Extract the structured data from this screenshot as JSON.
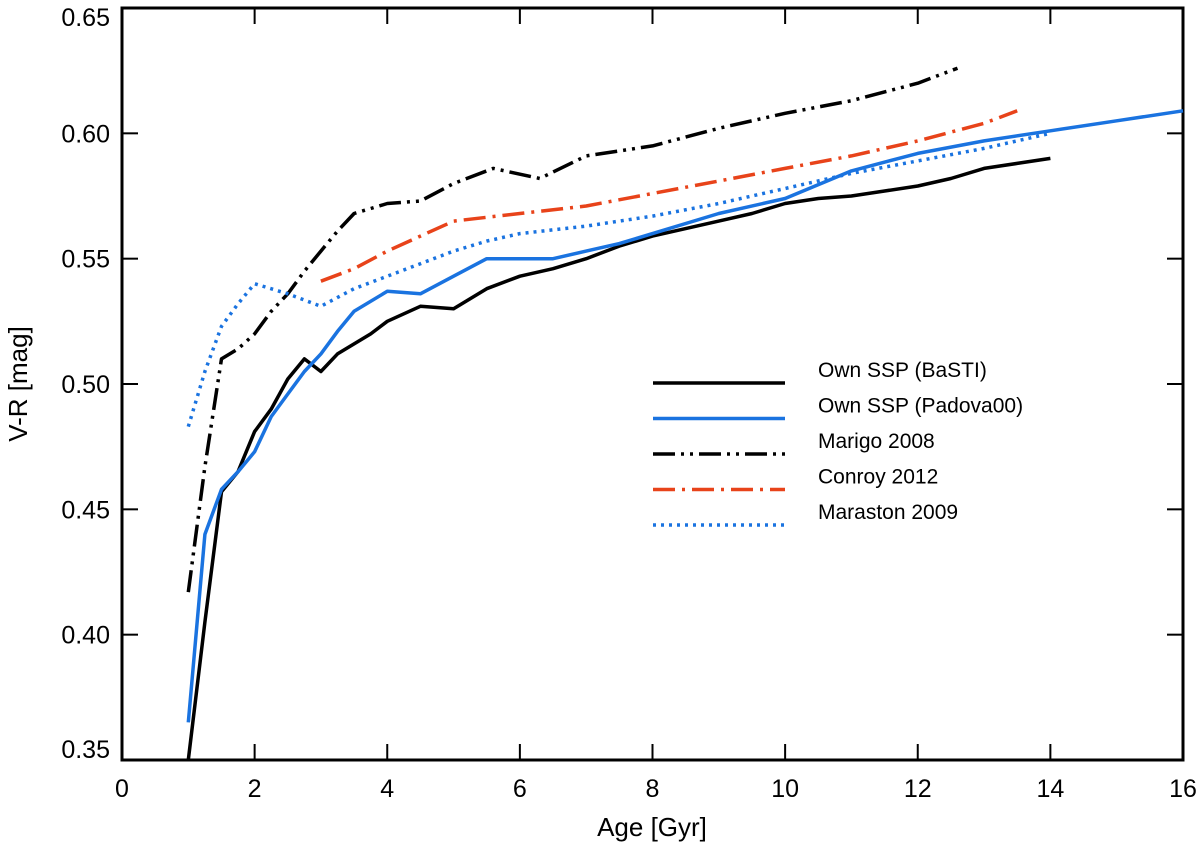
{
  "chart_data": {
    "type": "line",
    "title": "",
    "xlabel": "Age [Gyr]",
    "ylabel": "V-R [mag]",
    "xlim": [
      0,
      16
    ],
    "ylim": [
      0.35,
      0.65
    ],
    "x_ticks": [
      "0",
      "2",
      "4",
      "6",
      "8",
      "10",
      "12",
      "14",
      "16"
    ],
    "y_ticks": [
      "0.35",
      "0.40",
      "0.45",
      "0.50",
      "0.55",
      "0.60",
      "0.65"
    ],
    "grid": false,
    "legend_position": "center-right",
    "series": [
      {
        "name": "Own SSP (BaSTI)",
        "color": "#000000",
        "style": "solid",
        "x": [
          1.0,
          1.25,
          1.5,
          1.75,
          2.0,
          2.25,
          2.5,
          2.75,
          3.0,
          3.25,
          3.5,
          3.75,
          4.0,
          4.5,
          5.0,
          5.5,
          6.0,
          6.5,
          7.0,
          7.5,
          8.0,
          8.5,
          9.0,
          9.5,
          10.0,
          10.5,
          11.0,
          11.5,
          12.0,
          12.5,
          13.0,
          13.5,
          14.0
        ],
        "y": [
          0.35,
          0.405,
          0.457,
          0.465,
          0.481,
          0.49,
          0.502,
          0.51,
          0.505,
          0.512,
          0.516,
          0.52,
          0.525,
          0.531,
          0.53,
          0.538,
          0.543,
          0.546,
          0.55,
          0.555,
          0.559,
          0.562,
          0.565,
          0.568,
          0.572,
          0.574,
          0.575,
          0.577,
          0.579,
          0.582,
          0.586,
          0.588,
          0.59
        ]
      },
      {
        "name": "Own SSP (Padova00)",
        "color": "#1a73e0",
        "style": "solid",
        "x": [
          1.0,
          1.25,
          1.5,
          1.75,
          2.0,
          2.25,
          2.5,
          2.75,
          3.0,
          3.25,
          3.5,
          4.0,
          4.5,
          5.0,
          5.5,
          6.0,
          6.5,
          7.0,
          7.5,
          8.0,
          9.0,
          10.0,
          11.0,
          12.0,
          13.0,
          14.0,
          15.0,
          16.0
        ],
        "y": [
          0.365,
          0.44,
          0.458,
          0.465,
          0.473,
          0.487,
          0.496,
          0.505,
          0.512,
          0.521,
          0.529,
          0.537,
          0.536,
          0.543,
          0.55,
          0.55,
          0.55,
          0.553,
          0.556,
          0.56,
          0.568,
          0.574,
          0.585,
          0.592,
          0.597,
          0.601,
          0.605,
          0.609
        ]
      },
      {
        "name": "Marigo 2008",
        "color": "#000000",
        "style": "dash-dot-dot",
        "x": [
          1.0,
          1.25,
          1.5,
          1.75,
          2.0,
          2.25,
          2.5,
          2.75,
          3.0,
          3.25,
          3.5,
          4.0,
          4.5,
          5.0,
          5.6,
          6.3,
          7.0,
          8.0,
          9.0,
          10.0,
          11.0,
          12.0,
          12.6
        ],
        "y": [
          0.417,
          0.467,
          0.51,
          0.514,
          0.52,
          0.529,
          0.536,
          0.545,
          0.553,
          0.561,
          0.568,
          0.572,
          0.573,
          0.58,
          0.586,
          0.582,
          0.591,
          0.595,
          0.602,
          0.608,
          0.613,
          0.62,
          0.626
        ]
      },
      {
        "name": "Conroy 2012",
        "color": "#e8431a",
        "style": "dash-dot",
        "x": [
          3.0,
          3.5,
          4.0,
          4.5,
          5.0,
          6.0,
          7.0,
          8.0,
          9.0,
          10.0,
          11.0,
          12.0,
          13.0,
          13.5
        ],
        "y": [
          0.541,
          0.546,
          0.553,
          0.559,
          0.565,
          0.568,
          0.571,
          0.576,
          0.581,
          0.586,
          0.591,
          0.597,
          0.604,
          0.609
        ]
      },
      {
        "name": "Maraston 2009",
        "color": "#1a73e0",
        "style": "dotted",
        "x": [
          1.0,
          1.25,
          1.5,
          1.75,
          2.0,
          2.5,
          3.0,
          3.5,
          4.0,
          4.5,
          5.0,
          5.5,
          6.0,
          7.0,
          8.0,
          9.0,
          10.0,
          11.0,
          12.0,
          13.0,
          14.0
        ],
        "y": [
          0.483,
          0.505,
          0.523,
          0.532,
          0.54,
          0.536,
          0.531,
          0.538,
          0.543,
          0.548,
          0.553,
          0.557,
          0.56,
          0.563,
          0.567,
          0.572,
          0.578,
          0.584,
          0.589,
          0.594,
          0.6
        ]
      }
    ]
  }
}
